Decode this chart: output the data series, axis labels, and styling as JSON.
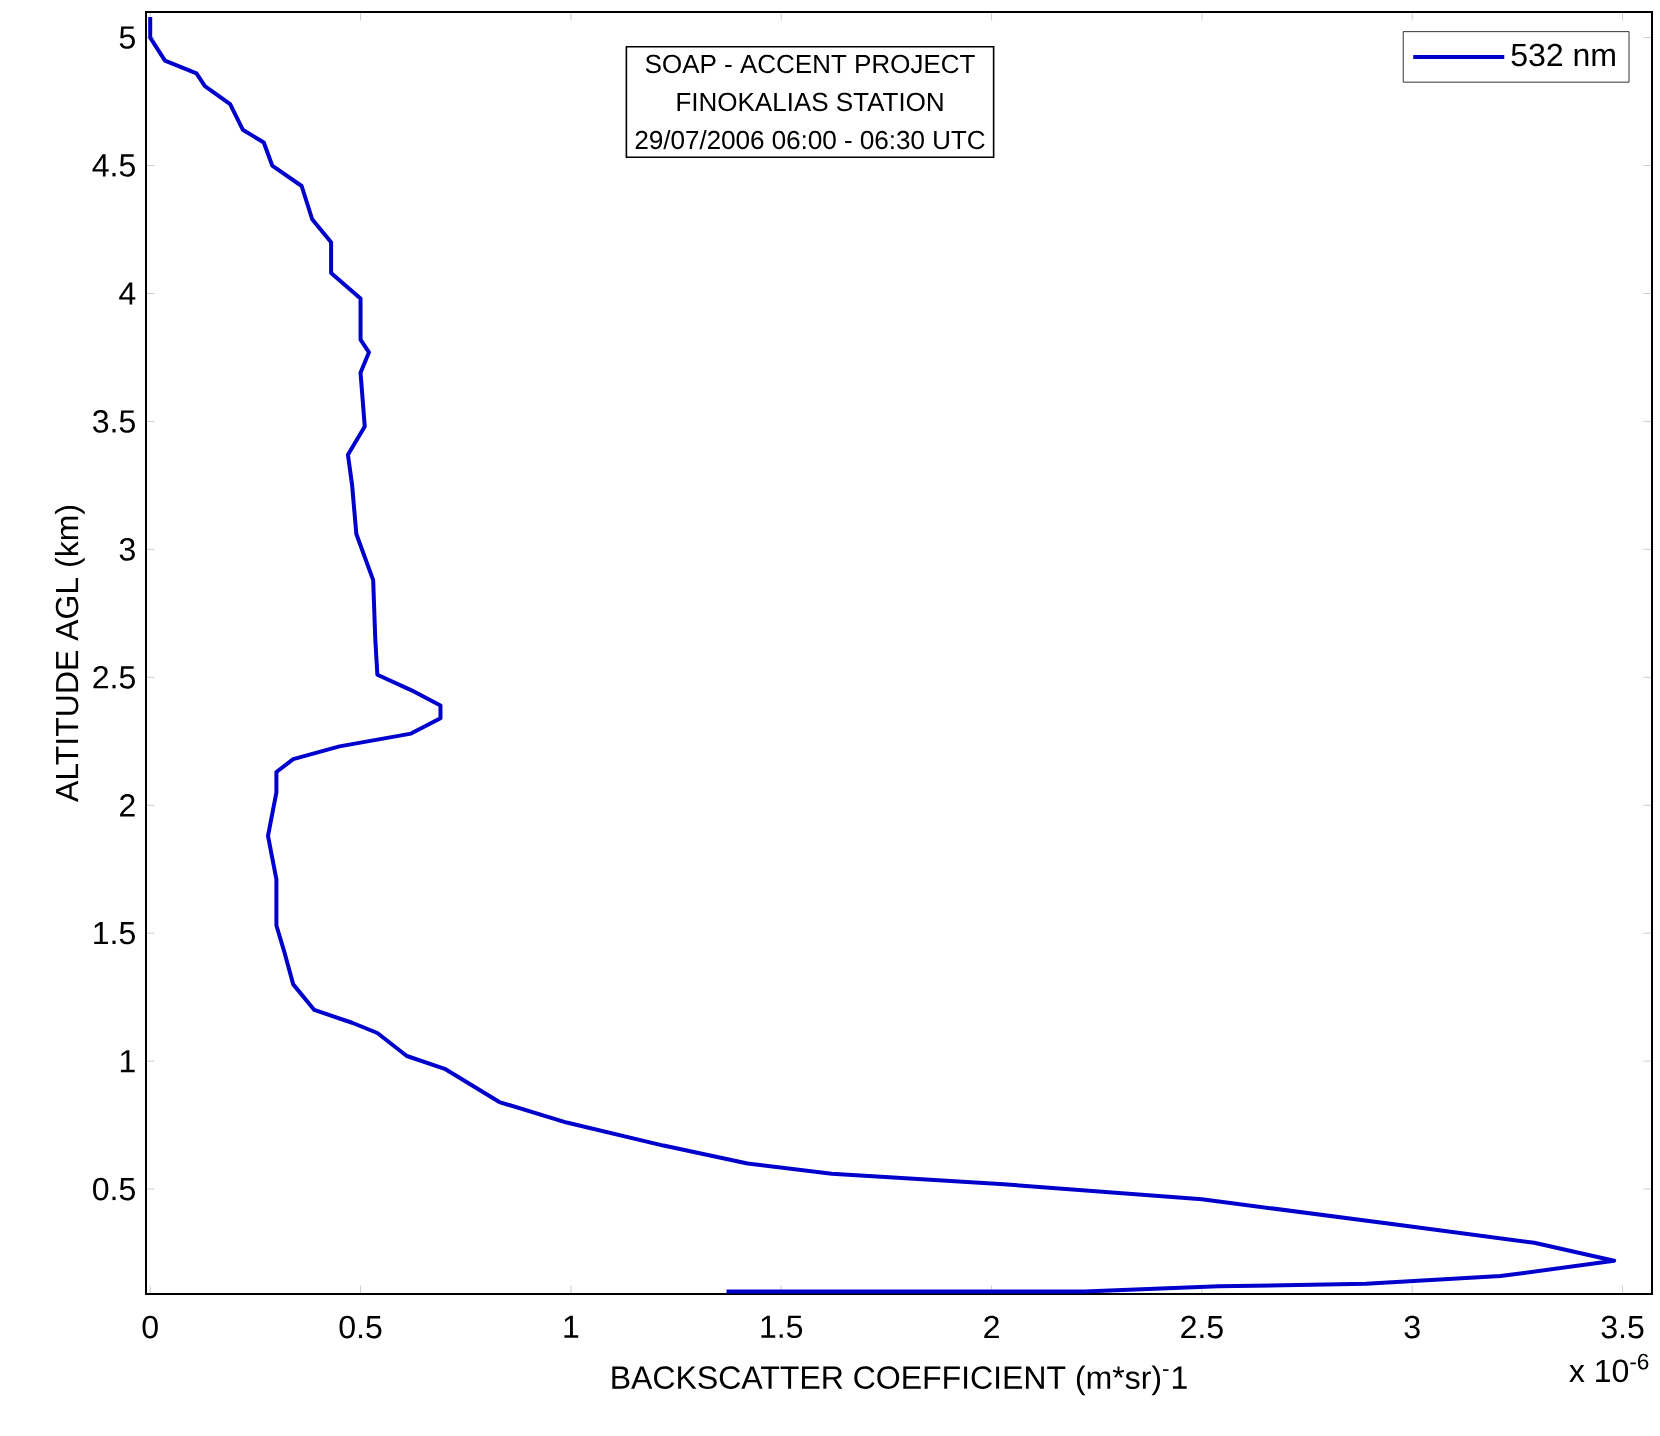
{
  "chart_data": {
    "type": "line",
    "xlabel": "BACKSCATTER COEFFICIENT (m*sr)$^{-}$1",
    "ylabel": "ALTITUDE AGL (km)",
    "annotations": [
      "SOAP - ACCENT PROJECT",
      "FINOKALIAS STATION",
      "29/07/2006 06:00 - 06:30 UTC",
      "x 10$^{-6}$"
    ],
    "xlim": [
      -0.01,
      3.57
    ],
    "ylim": [
      0.09,
      5.1
    ],
    "xticks": [
      0,
      0.5,
      1,
      1.5,
      2,
      2.5,
      3,
      3.5
    ],
    "yticks": [
      0.5,
      1,
      1.5,
      2,
      2.5,
      3,
      3.5,
      4,
      4.5,
      5
    ],
    "legend": "top right",
    "marker": "none",
    "line_style": "solid",
    "series": [
      {
        "name": "532 nm",
        "color": "#0000cc",
        "x": [
          0,
          0,
          0.035,
          0.11,
          0.13,
          0.19,
          0.22,
          0.27,
          0.29,
          0.36,
          0.385,
          0.43,
          0.43,
          0.5,
          0.5,
          0.52,
          0.5,
          0.51,
          0.47,
          0.48,
          0.49,
          0.53,
          0.535,
          0.54,
          0.62,
          0.69,
          0.69,
          0.62,
          0.45,
          0.34,
          0.3,
          0.3,
          0.28,
          0.3,
          0.3,
          0.32,
          0.34,
          0.39,
          0.48,
          0.54,
          0.61,
          0.7,
          0.83,
          0.99,
          1.22,
          1.42,
          1.62,
          2.02,
          2.5,
          2.97,
          3.29,
          3.48,
          3.21,
          2.89,
          2.54,
          2.22,
          1.37
        ],
        "values": [
          5.08,
          5.0,
          4.91,
          4.86,
          4.81,
          4.74,
          4.64,
          4.59,
          4.5,
          4.42,
          4.29,
          4.2,
          4.08,
          3.98,
          3.82,
          3.77,
          3.69,
          3.48,
          3.37,
          3.25,
          3.06,
          2.88,
          2.65,
          2.51,
          2.45,
          2.39,
          2.34,
          2.28,
          2.23,
          2.18,
          2.13,
          2.05,
          1.88,
          1.71,
          1.53,
          1.42,
          1.3,
          1.2,
          1.15,
          1.11,
          1.02,
          0.97,
          0.84,
          0.76,
          0.67,
          0.6,
          0.56,
          0.52,
          0.46,
          0.36,
          0.29,
          0.22,
          0.16,
          0.13,
          0.12,
          0.1,
          0.1
        ]
      }
    ]
  }
}
